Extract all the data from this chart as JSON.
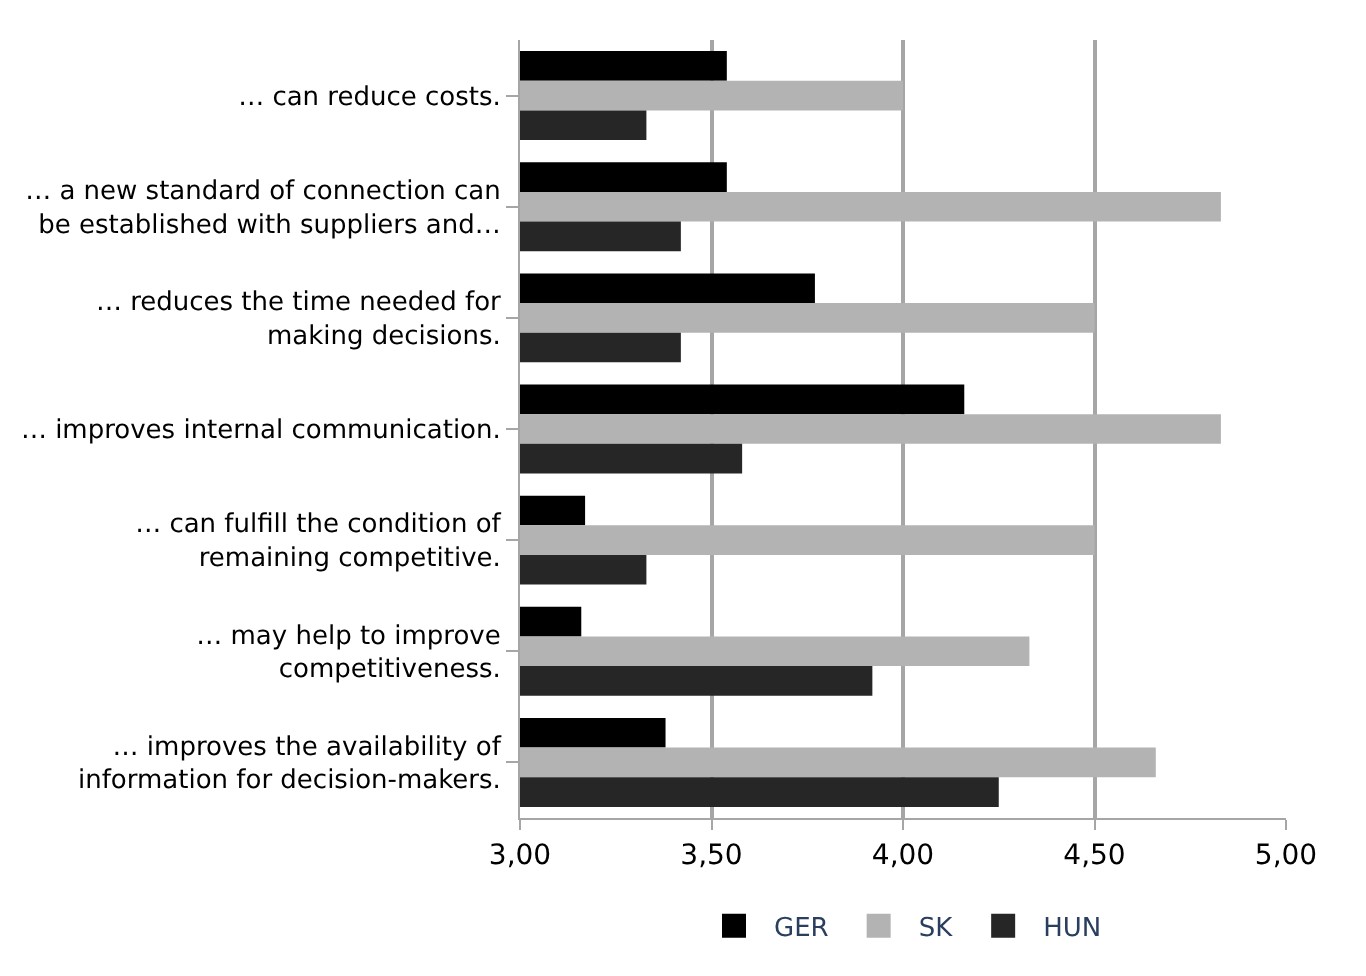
{
  "chart_data": {
    "type": "bar",
    "orientation": "horizontal",
    "categories": [
      "… can reduce costs.",
      "… a new standard of connection can\nbe established with suppliers and…",
      "… reduces the time needed for\nmaking decisions.",
      "… improves internal communication.",
      "… can fulfill the condition of\nremaining competitive.",
      "… may help to improve\ncompetitiveness.",
      "… improves the availability of\ninformation for decision-makers."
    ],
    "series": [
      {
        "name": "GER",
        "color": "#000000",
        "values": [
          3.54,
          3.54,
          3.77,
          4.16,
          3.17,
          3.16,
          3.38
        ]
      },
      {
        "name": "SK",
        "color": "#b3b3b3",
        "values": [
          4.0,
          4.83,
          4.5,
          4.83,
          4.5,
          4.33,
          4.66
        ]
      },
      {
        "name": "HUN",
        "color": "#262626",
        "values": [
          3.33,
          3.42,
          3.42,
          3.58,
          3.33,
          3.92,
          4.25
        ]
      }
    ],
    "xlim": [
      3.0,
      5.0
    ],
    "xticks": [
      {
        "value": 3.0,
        "label": "3,00"
      },
      {
        "value": 3.5,
        "label": "3,50"
      },
      {
        "value": 4.0,
        "label": "4,00"
      },
      {
        "value": 4.5,
        "label": "4,50"
      },
      {
        "value": 5.0,
        "label": "5,00"
      }
    ],
    "grid": "x",
    "legend": "bottom"
  }
}
